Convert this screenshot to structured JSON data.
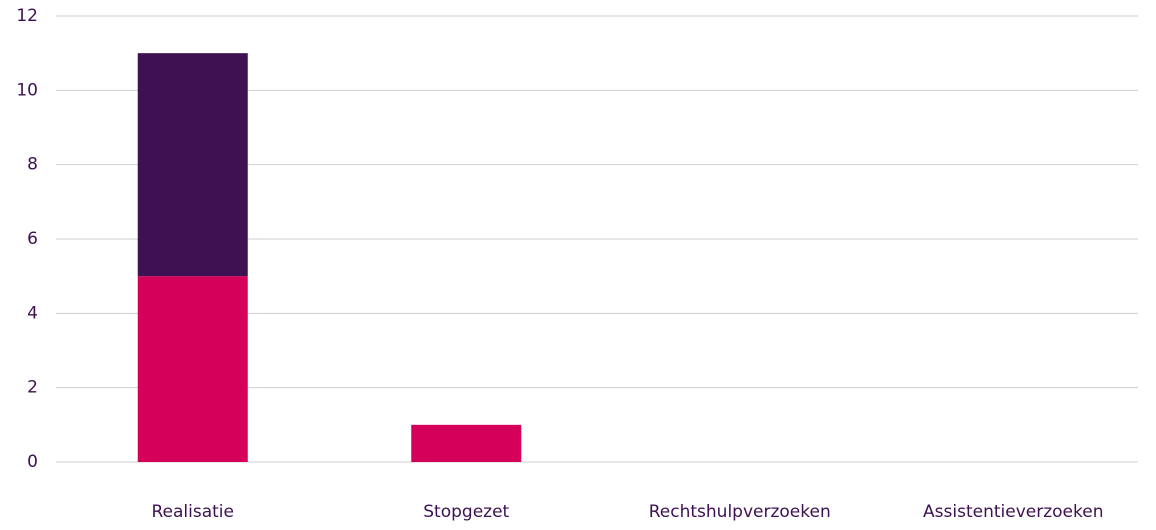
{
  "chart_data": {
    "type": "bar",
    "stacked": true,
    "categories": [
      "Realisatie",
      "Stopgezet",
      "Rechtshulpverzoeken",
      "Assistentieverzoeken"
    ],
    "series": [
      {
        "color": "#d4005a",
        "values": [
          5,
          1,
          0,
          0
        ]
      },
      {
        "color": "#3d1152",
        "values": [
          6,
          0,
          0,
          0
        ]
      }
    ],
    "ylim": [
      0,
      12
    ],
    "yticks": [
      0,
      2,
      4,
      6,
      8,
      10,
      12
    ],
    "grid": true
  }
}
